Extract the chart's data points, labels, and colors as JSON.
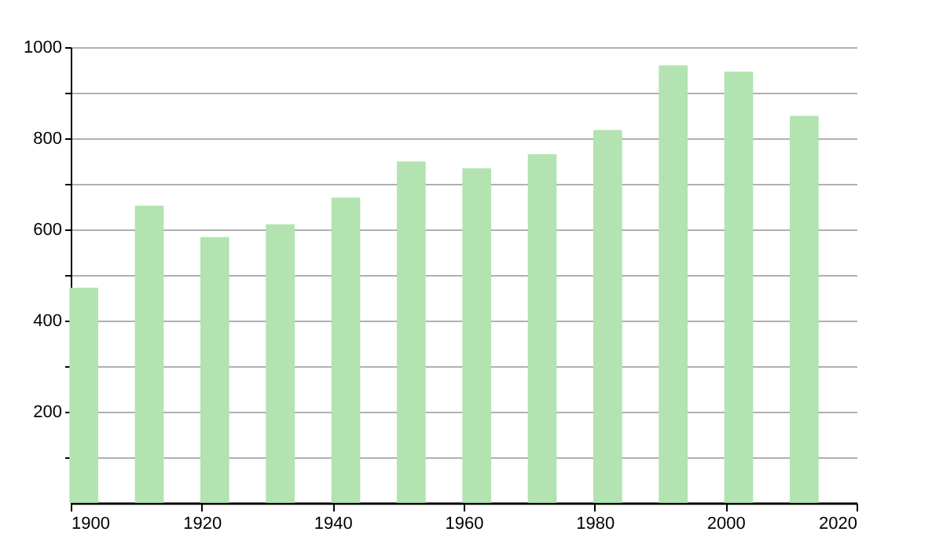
{
  "chart_data": {
    "type": "bar",
    "x": [
      1902,
      1912,
      1922,
      1932,
      1942,
      1952,
      1962,
      1972,
      1982,
      1992,
      2002,
      2012
    ],
    "values": [
      472,
      652,
      583,
      611,
      670,
      749,
      734,
      765,
      818,
      960,
      946,
      849
    ],
    "color": "#b2e3b0",
    "xlim": [
      1900,
      2020
    ],
    "xticks": [
      1900,
      1920,
      1940,
      1960,
      1980,
      2000,
      2020
    ],
    "ylim": [
      0,
      1000
    ],
    "yticks": [
      {
        "value": 100,
        "label": null
      },
      200,
      {
        "value": 300,
        "label": null
      },
      400,
      {
        "value": 500,
        "label": null
      },
      600,
      {
        "value": 700,
        "label": null
      },
      800,
      {
        "value": 900,
        "label": null
      },
      1000
    ],
    "grid": "y"
  }
}
